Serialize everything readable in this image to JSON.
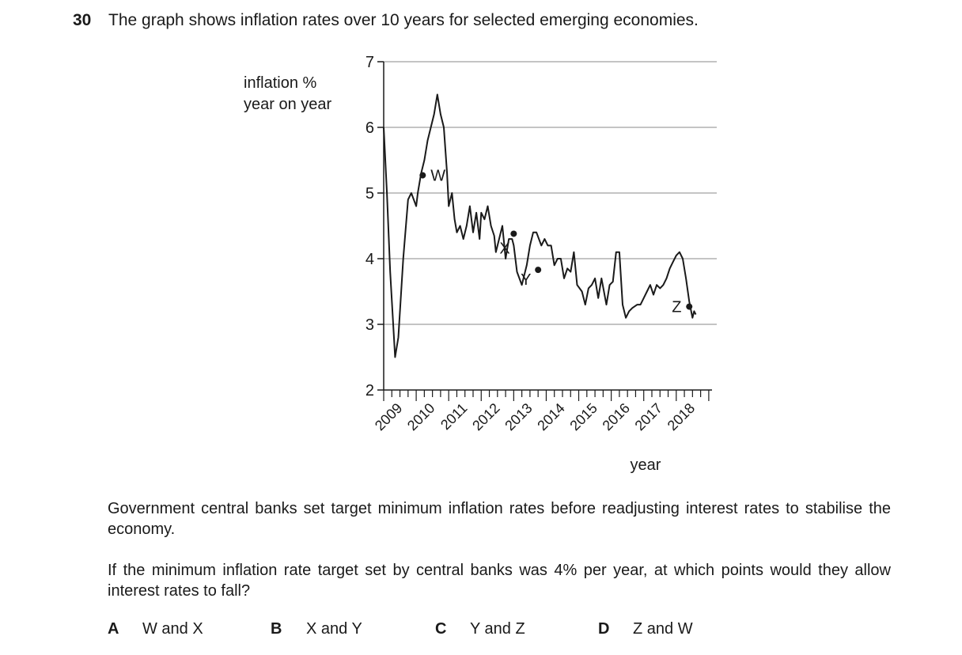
{
  "question": {
    "number": "30",
    "text": "The graph shows inflation rates over 10 years for selected emerging economies."
  },
  "chart_data": {
    "type": "line",
    "title": "",
    "ylabel_lines": [
      "inflation %",
      "year on year"
    ],
    "xlabel": "year",
    "ylim": [
      2,
      7
    ],
    "yticks": [
      "2",
      "3",
      "4",
      "5",
      "6",
      "7"
    ],
    "xlim": [
      2009,
      2019.1
    ],
    "xticks": [
      "2009",
      "2010",
      "2011",
      "2012",
      "2013",
      "2014",
      "2015",
      "2016",
      "2017",
      "2018"
    ],
    "grid": "horizontal",
    "series": [
      {
        "x": [
          2009.0,
          2009.1,
          2009.2,
          2009.35,
          2009.45,
          2009.6,
          2009.75,
          2009.85,
          2010.0,
          2010.05,
          2010.15,
          2010.25,
          2010.35,
          2010.45,
          2010.55,
          2010.65,
          2010.75,
          2010.85,
          2010.95,
          2011.0,
          2011.1,
          2011.18,
          2011.25,
          2011.35,
          2011.45,
          2011.55,
          2011.65,
          2011.75,
          2011.85,
          2011.95,
          2012.0,
          2012.1,
          2012.2,
          2012.3,
          2012.4,
          2012.45,
          2012.55,
          2012.65,
          2012.75,
          2012.85,
          2012.95,
          2013.0,
          2013.1,
          2013.25,
          2013.4,
          2013.5,
          2013.6,
          2013.7,
          2013.85,
          2013.95,
          2014.05,
          2014.15,
          2014.25,
          2014.35,
          2014.45,
          2014.55,
          2014.65,
          2014.75,
          2014.85,
          2014.95,
          2015.1,
          2015.2,
          2015.3,
          2015.4,
          2015.5,
          2015.6,
          2015.7,
          2015.85,
          2015.95,
          2016.05,
          2016.15,
          2016.25,
          2016.35,
          2016.45,
          2016.55,
          2016.65,
          2016.8,
          2016.9,
          2017.0,
          2017.1,
          2017.2,
          2017.3,
          2017.4,
          2017.5,
          2017.6,
          2017.7,
          2017.8,
          2017.9,
          2018.0,
          2018.1,
          2018.2,
          2018.3,
          2018.4,
          2018.5,
          2018.55,
          2018.6
        ],
        "values": [
          6.0,
          5.0,
          3.8,
          2.5,
          2.8,
          4.0,
          4.9,
          5.0,
          4.8,
          5.0,
          5.3,
          5.5,
          5.8,
          6.0,
          6.2,
          6.5,
          6.2,
          6.0,
          5.3,
          4.8,
          5.0,
          4.6,
          4.4,
          4.5,
          4.3,
          4.5,
          4.8,
          4.4,
          4.7,
          4.3,
          4.7,
          4.6,
          4.8,
          4.5,
          4.35,
          4.1,
          4.3,
          4.5,
          4.0,
          4.3,
          4.3,
          4.2,
          3.8,
          3.6,
          3.9,
          4.2,
          4.4,
          4.4,
          4.2,
          4.3,
          4.2,
          4.2,
          3.9,
          4.0,
          4.0,
          3.7,
          3.85,
          3.8,
          4.1,
          3.6,
          3.5,
          3.3,
          3.55,
          3.6,
          3.7,
          3.4,
          3.7,
          3.3,
          3.6,
          3.65,
          4.1,
          4.1,
          3.3,
          3.1,
          3.2,
          3.25,
          3.3,
          3.3,
          3.4,
          3.5,
          3.6,
          3.45,
          3.6,
          3.55,
          3.6,
          3.7,
          3.85,
          3.95,
          4.05,
          4.1,
          4.0,
          3.7,
          3.35,
          3.1,
          3.2,
          3.15
        ]
      }
    ],
    "points": [
      {
        "label": "W",
        "x": 2010.2,
        "y": 5.27
      },
      {
        "label": "X",
        "x": 2013.0,
        "y": 4.38
      },
      {
        "label": "Y",
        "x": 2013.75,
        "y": 3.83
      },
      {
        "label": "Z",
        "x": 2018.4,
        "y": 3.27
      }
    ]
  },
  "paragraphs": [
    "Government central banks set target minimum inflation rates before readjusting interest rates to stabilise the economy.",
    "If the minimum inflation rate target set by central banks was 4% per year, at which points would they allow interest rates to fall?"
  ],
  "options": [
    {
      "letter": "A",
      "text": "W and X"
    },
    {
      "letter": "B",
      "text": "X and Y"
    },
    {
      "letter": "C",
      "text": "Y and Z"
    },
    {
      "letter": "D",
      "text": "Z and W"
    }
  ]
}
